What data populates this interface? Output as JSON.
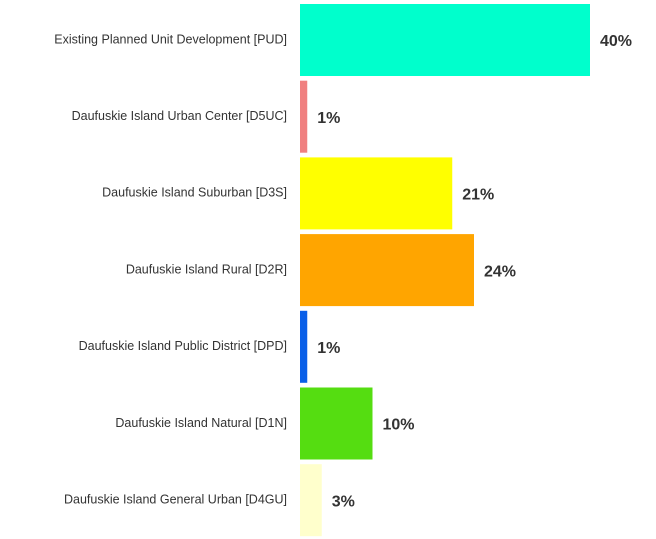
{
  "chart_data": {
    "type": "bar",
    "orientation": "horizontal",
    "categories": [
      "Existing Planned Unit Development [PUD]",
      "Daufuskie Island Urban Center [D5UC]",
      "Daufuskie Island Suburban [D3S]",
      "Daufuskie Island Rural [D2R]",
      "Daufuskie Island Public District [DPD]",
      "Daufuskie Island Natural [D1N]",
      "Daufuskie Island General Urban [D4GU]"
    ],
    "values": [
      40,
      1,
      21,
      24,
      1,
      10,
      3
    ],
    "value_labels": [
      "40%",
      "1%",
      "21%",
      "24%",
      "1%",
      "10%",
      "3%"
    ],
    "colors": [
      "#00ffcc",
      "#f08080",
      "#ffff00",
      "#ffa500",
      "#0a5fe8",
      "#55dd11",
      "#ffffcc"
    ]
  }
}
